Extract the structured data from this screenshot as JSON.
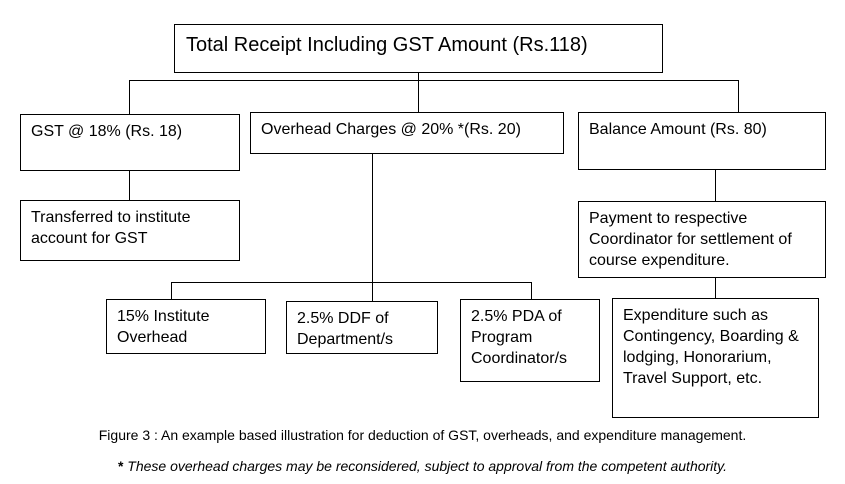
{
  "diagram": {
    "root": {
      "label": "Total Receipt Including GST Amount (Rs.118)"
    },
    "level1": {
      "gst": "GST @ 18% (Rs. 18)",
      "overhead": "Overhead Charges @ 20% *(Rs. 20)",
      "balance": "Balance Amount (Rs. 80)"
    },
    "gst_child": "Transferred to institute account for GST",
    "balance_child": "Payment to respective Coordinator for settlement of course expenditure.",
    "overhead_children": {
      "institute": "15% Institute Overhead",
      "ddf": "2.5% DDF of Department/s",
      "pda": "2.5% PDA of Program Coordinator/s"
    },
    "payment_child": "Expenditure such as Contingency, Boarding & lodging, Honorarium, Travel Support, etc."
  },
  "caption": "Figure 3 : An example based illustration for deduction of GST, overheads, and expenditure management.",
  "footnote": {
    "marker": "*",
    "text": " These overhead charges may be reconsidered, subject to approval from the competent authority."
  }
}
